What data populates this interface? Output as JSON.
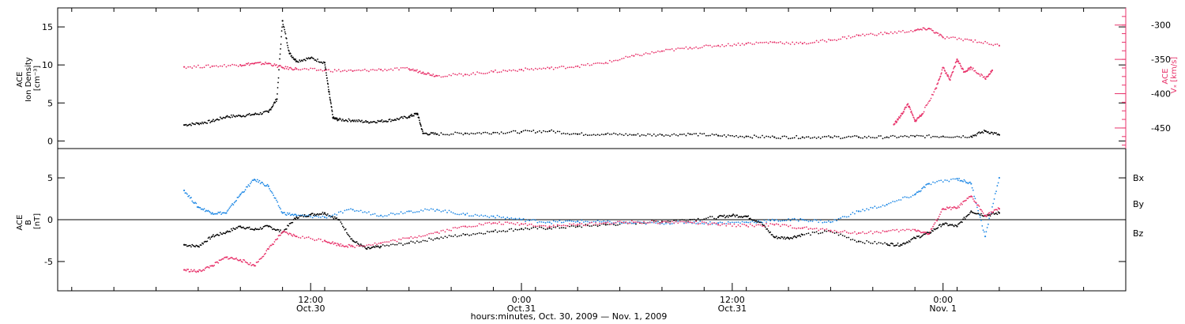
{
  "chart_data": [
    {
      "panel": "top",
      "type": "scatter",
      "left_axis": {
        "label_lines": [
          "ACE",
          "Ion Density",
          "[cm⁻³]"
        ],
        "ticks": [
          0,
          5,
          10,
          15
        ],
        "ylim": [
          -1,
          17.5
        ]
      },
      "right_axis": {
        "label_lines": [
          "ACE",
          "Vₓ [km/s]"
        ],
        "ticks": [
          -300,
          -350,
          -400,
          -450
        ],
        "ylim": [
          -480,
          -275
        ],
        "color": "#e8336b"
      },
      "series": [
        {
          "axis": "left",
          "color": "#000000",
          "points": [
            [
              0,
              2.1
            ],
            [
              1,
              2.3
            ],
            [
              2,
              2.6
            ],
            [
              3,
              3.2
            ],
            [
              4,
              3.3
            ],
            [
              5,
              3.5
            ],
            [
              6,
              3.8
            ],
            [
              6.6,
              5.5
            ],
            [
              7,
              15.8
            ],
            [
              7.5,
              11.5
            ],
            [
              8,
              10.5
            ],
            [
              9,
              10.9
            ],
            [
              10,
              10.3
            ],
            [
              10.3,
              6.5
            ],
            [
              10.6,
              3.0
            ],
            [
              11,
              2.8
            ],
            [
              12,
              2.7
            ],
            [
              13,
              2.5
            ],
            [
              14,
              2.6
            ],
            [
              15,
              2.8
            ],
            [
              16,
              3.2
            ],
            [
              16.6,
              3.6
            ],
            [
              17,
              1.0
            ],
            [
              18,
              0.9
            ],
            [
              20,
              1.0
            ],
            [
              22,
              1.1
            ],
            [
              24,
              1.2
            ],
            [
              26,
              1.3
            ],
            [
              28,
              0.9
            ],
            [
              30,
              0.9
            ],
            [
              32,
              0.8
            ],
            [
              34,
              0.8
            ],
            [
              36,
              0.9
            ],
            [
              38,
              0.7
            ],
            [
              40,
              0.6
            ],
            [
              42,
              0.5
            ],
            [
              44,
              0.5
            ],
            [
              46,
              0.5
            ],
            [
              48,
              0.5
            ],
            [
              50,
              0.5
            ],
            [
              52,
              0.6
            ],
            [
              54,
              0.6
            ],
            [
              56,
              0.6
            ],
            [
              57,
              1.3
            ],
            [
              58,
              0.8
            ]
          ]
        },
        {
          "axis": "right",
          "color": "#e8336b",
          "points": [
            [
              0,
              -361
            ],
            [
              2,
              -360
            ],
            [
              4,
              -358
            ],
            [
              5,
              -356
            ],
            [
              6,
              -356
            ],
            [
              7,
              -362
            ],
            [
              8,
              -364
            ],
            [
              10,
              -366
            ],
            [
              12,
              -367
            ],
            [
              14,
              -365
            ],
            [
              16,
              -364
            ],
            [
              17,
              -369
            ],
            [
              18,
              -374
            ],
            [
              20,
              -372
            ],
            [
              22,
              -368
            ],
            [
              24,
              -365
            ],
            [
              26,
              -363
            ],
            [
              28,
              -360
            ],
            [
              30,
              -355
            ],
            [
              32,
              -345
            ],
            [
              34,
              -338
            ],
            [
              36,
              -333
            ],
            [
              38,
              -330
            ],
            [
              40,
              -327
            ],
            [
              42,
              -325
            ],
            [
              44,
              -327
            ],
            [
              46,
              -322
            ],
            [
              48,
              -315
            ],
            [
              50,
              -312
            ],
            [
              52,
              -308
            ],
            [
              53,
              -305
            ],
            [
              54,
              -318
            ],
            [
              56,
              -322
            ],
            [
              58,
              -330
            ]
          ]
        },
        {
          "axis": "right",
          "color": "#e8336b",
          "points": [
            [
              50.5,
              -445
            ],
            [
              51,
              -432
            ],
            [
              51.5,
              -415
            ],
            [
              52,
              -440
            ],
            [
              52.5,
              -430
            ],
            [
              53.5,
              -392
            ],
            [
              54,
              -362
            ],
            [
              54.5,
              -380
            ],
            [
              55,
              -350
            ],
            [
              55.5,
              -368
            ],
            [
              56,
              -362
            ],
            [
              57,
              -378
            ],
            [
              57.5,
              -366
            ]
          ]
        }
      ]
    },
    {
      "panel": "bottom",
      "type": "scatter",
      "left_axis": {
        "label_lines": [
          "ACE",
          "B",
          "[nT]"
        ],
        "ticks": [
          -5,
          0,
          5
        ],
        "ylim": [
          -8.5,
          8.5
        ]
      },
      "zero_line": true,
      "legend": [
        "Bx",
        "By",
        "Bz"
      ],
      "series": [
        {
          "name": "Bx",
          "color": "#000000",
          "points": [
            [
              0,
              -3
            ],
            [
              1,
              -3.2
            ],
            [
              2,
              -2
            ],
            [
              3,
              -1.5
            ],
            [
              4,
              -0.8
            ],
            [
              5,
              -1.2
            ],
            [
              6,
              -0.8
            ],
            [
              7,
              -1.5
            ],
            [
              8,
              0.3
            ],
            [
              9,
              0.6
            ],
            [
              10,
              0.8
            ],
            [
              11,
              0
            ],
            [
              12,
              -2.5
            ],
            [
              13,
              -3.5
            ],
            [
              14,
              -3.2
            ],
            [
              16,
              -2.8
            ],
            [
              18,
              -2.2
            ],
            [
              20,
              -1.8
            ],
            [
              22,
              -1.4
            ],
            [
              24,
              -1.1
            ],
            [
              26,
              -1
            ],
            [
              28,
              -0.8
            ],
            [
              30,
              -0.6
            ],
            [
              32,
              -0.4
            ],
            [
              34,
              -0.2
            ],
            [
              36,
              0
            ],
            [
              38,
              0.3
            ],
            [
              39,
              0.5
            ],
            [
              40,
              0.4
            ],
            [
              41,
              -0.3
            ],
            [
              42,
              -2.1
            ],
            [
              43,
              -2.2
            ],
            [
              44,
              -1.8
            ],
            [
              46,
              -1.4
            ],
            [
              48,
              -2.6
            ],
            [
              50,
              -2.9
            ],
            [
              51,
              -3
            ],
            [
              52,
              -2.2
            ],
            [
              53,
              -1.6
            ],
            [
              54,
              -0.5
            ],
            [
              55,
              -0.8
            ],
            [
              56,
              1
            ],
            [
              57,
              0.5
            ],
            [
              58,
              0.8
            ]
          ]
        },
        {
          "name": "By",
          "color": "#1e88e5",
          "points": [
            [
              0,
              3.5
            ],
            [
              1,
              1.5
            ],
            [
              2,
              0.8
            ],
            [
              3,
              0.8
            ],
            [
              4,
              3
            ],
            [
              5,
              4.8
            ],
            [
              6,
              4
            ],
            [
              7,
              0.8
            ],
            [
              8,
              0.5
            ],
            [
              10,
              0.3
            ],
            [
              12,
              1.2
            ],
            [
              14,
              0.5
            ],
            [
              16,
              1
            ],
            [
              18,
              1.2
            ],
            [
              20,
              0.6
            ],
            [
              22,
              0.4
            ],
            [
              24,
              0
            ],
            [
              26,
              -0.3
            ],
            [
              28,
              -0.2
            ],
            [
              30,
              -0.3
            ],
            [
              32,
              -0.4
            ],
            [
              34,
              -0.4
            ],
            [
              36,
              -0.3
            ],
            [
              38,
              -0.4
            ],
            [
              40,
              -0.3
            ],
            [
              42,
              -0.1
            ],
            [
              44,
              0
            ],
            [
              46,
              -0.3
            ],
            [
              48,
              1
            ],
            [
              50,
              1.8
            ],
            [
              52,
              3
            ],
            [
              53,
              4.3
            ],
            [
              55,
              4.9
            ],
            [
              56,
              4.3
            ],
            [
              57,
              -2
            ],
            [
              58,
              5
            ]
          ]
        },
        {
          "name": "Bz",
          "color": "#e8336b",
          "points": [
            [
              0,
              -6
            ],
            [
              1,
              -6.2
            ],
            [
              2,
              -5.5
            ],
            [
              3,
              -4.5
            ],
            [
              4,
              -4.8
            ],
            [
              5,
              -5.5
            ],
            [
              6,
              -3.5
            ],
            [
              7,
              -1.5
            ],
            [
              8,
              -2
            ],
            [
              10,
              -2.5
            ],
            [
              11,
              -3
            ],
            [
              12,
              -3.2
            ],
            [
              14,
              -2.8
            ],
            [
              16,
              -2.2
            ],
            [
              18,
              -1.5
            ],
            [
              20,
              -0.8
            ],
            [
              22,
              -0.4
            ],
            [
              24,
              -0.5
            ],
            [
              26,
              -0.8
            ],
            [
              28,
              -0.6
            ],
            [
              30,
              -0.4
            ],
            [
              32,
              -0.3
            ],
            [
              34,
              -0.3
            ],
            [
              36,
              -0.3
            ],
            [
              38,
              -0.6
            ],
            [
              40,
              -0.7
            ],
            [
              42,
              -0.6
            ],
            [
              44,
              -1
            ],
            [
              46,
              -1.3
            ],
            [
              48,
              -1.6
            ],
            [
              50,
              -1.4
            ],
            [
              52,
              -1.2
            ],
            [
              53,
              -1.7
            ],
            [
              54,
              1.3
            ],
            [
              55,
              1.4
            ],
            [
              56,
              2.8
            ],
            [
              57,
              0.5
            ],
            [
              58,
              1.3
            ]
          ]
        }
      ]
    }
  ],
  "time_axis": {
    "xlim": [
      -9,
      67
    ],
    "ticks": [
      {
        "x": 9,
        "line1": "12:00",
        "line2": "Oct.30"
      },
      {
        "x": 24,
        "line1": "0:00",
        "line2": "Oct.31"
      },
      {
        "x": 39,
        "line1": "12:00",
        "line2": "Oct.31"
      },
      {
        "x": 54,
        "line1": "0:00",
        "line2": "Nov. 1"
      }
    ],
    "label": "hours:minutes, Oct. 30, 2009 — Nov.  1, 2009"
  }
}
